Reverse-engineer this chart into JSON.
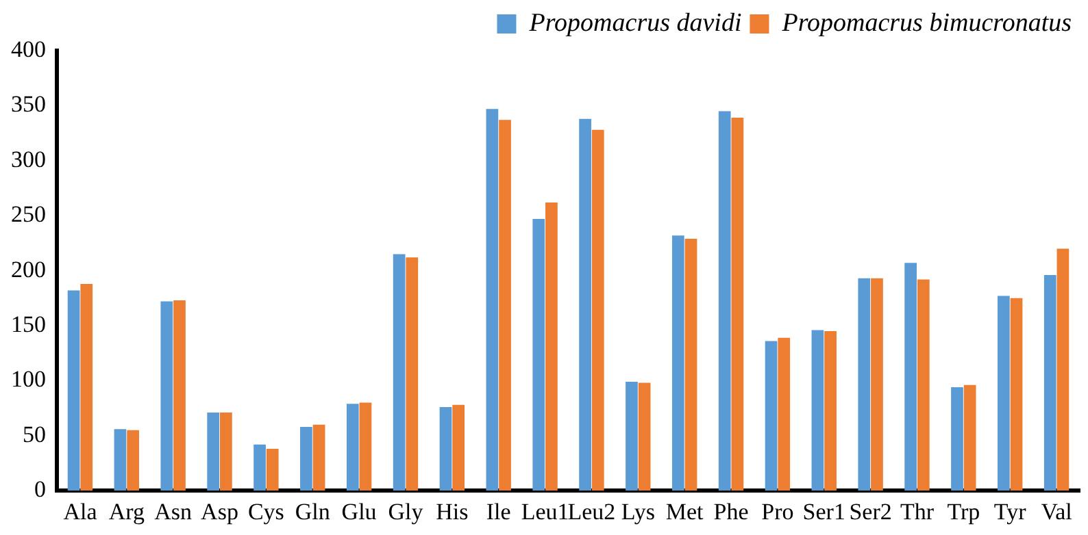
{
  "chart_data": {
    "type": "bar",
    "categories": [
      "Ala",
      "Arg",
      "Asn",
      "Asp",
      "Cys",
      "Gln",
      "Glu",
      "Gly",
      "His",
      "Ile",
      "Leu1",
      "Leu2",
      "Lys",
      "Met",
      "Phe",
      "Pro",
      "Ser1",
      "Ser2",
      "Thr",
      "Trp",
      "Tyr",
      "Val"
    ],
    "series": [
      {
        "name": "Propomacrus davidi",
        "color": "#5b9bd5",
        "values": [
          182,
          56,
          172,
          71,
          42,
          58,
          79,
          215,
          76,
          347,
          247,
          338,
          99,
          232,
          345,
          136,
          146,
          193,
          207,
          94,
          177,
          196
        ]
      },
      {
        "name": "Propomacrus bimucronatus",
        "color": "#ed7d31",
        "values": [
          188,
          55,
          173,
          71,
          38,
          60,
          80,
          212,
          78,
          337,
          262,
          328,
          98,
          229,
          339,
          139,
          145,
          193,
          192,
          96,
          175,
          220
        ]
      }
    ],
    "ylim": [
      0,
      400
    ],
    "yticks": [
      0,
      50,
      100,
      150,
      200,
      250,
      300,
      350,
      400
    ],
    "grid": false,
    "legend": "top right"
  }
}
